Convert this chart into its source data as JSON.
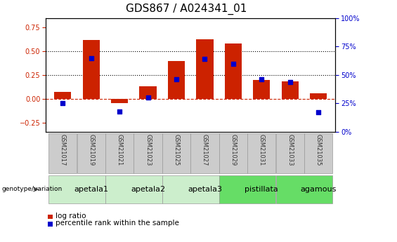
{
  "title": "GDS867 / A024341_01",
  "samples": [
    "GSM21017",
    "GSM21019",
    "GSM21021",
    "GSM21023",
    "GSM21025",
    "GSM21027",
    "GSM21029",
    "GSM21031",
    "GSM21033",
    "GSM21035"
  ],
  "log_ratio": [
    0.07,
    0.62,
    -0.05,
    0.13,
    0.4,
    0.63,
    0.58,
    0.2,
    0.18,
    0.06
  ],
  "percentile_rank_pct": [
    25,
    65,
    18,
    30,
    46,
    64,
    60,
    46,
    44,
    17
  ],
  "bar_color": "#cc2200",
  "dot_color": "#0000cc",
  "ylim_left": [
    -0.35,
    0.85
  ],
  "ylim_right": [
    0,
    100
  ],
  "yticks_left": [
    -0.25,
    0.0,
    0.25,
    0.5,
    0.75
  ],
  "yticks_right": [
    0,
    25,
    50,
    75,
    100
  ],
  "hline_values": [
    0.0,
    0.25,
    0.5
  ],
  "hline_styles": [
    "dashed",
    "dotted",
    "dotted"
  ],
  "hline_colors": [
    "#cc2200",
    "#000000",
    "#000000"
  ],
  "groups": [
    {
      "label": "apetala1",
      "start": 0,
      "end": 2,
      "color": "#cceecc"
    },
    {
      "label": "apetala2",
      "start": 2,
      "end": 4,
      "color": "#cceecc"
    },
    {
      "label": "apetala3",
      "start": 4,
      "end": 6,
      "color": "#cceecc"
    },
    {
      "label": "pistillata",
      "start": 6,
      "end": 8,
      "color": "#66dd66"
    },
    {
      "label": "agamous",
      "start": 8,
      "end": 10,
      "color": "#66dd66"
    }
  ],
  "legend_bar_label": "log ratio",
  "legend_dot_label": "percentile rank within the sample",
  "genotype_label": "genotype/variation",
  "title_fontsize": 11,
  "tick_fontsize": 7,
  "sample_fontsize": 6,
  "group_fontsize": 8,
  "legend_fontsize": 7.5,
  "bar_width": 0.6,
  "dot_size": 18,
  "box_color": "#cccccc",
  "box_edge_color": "#999999"
}
